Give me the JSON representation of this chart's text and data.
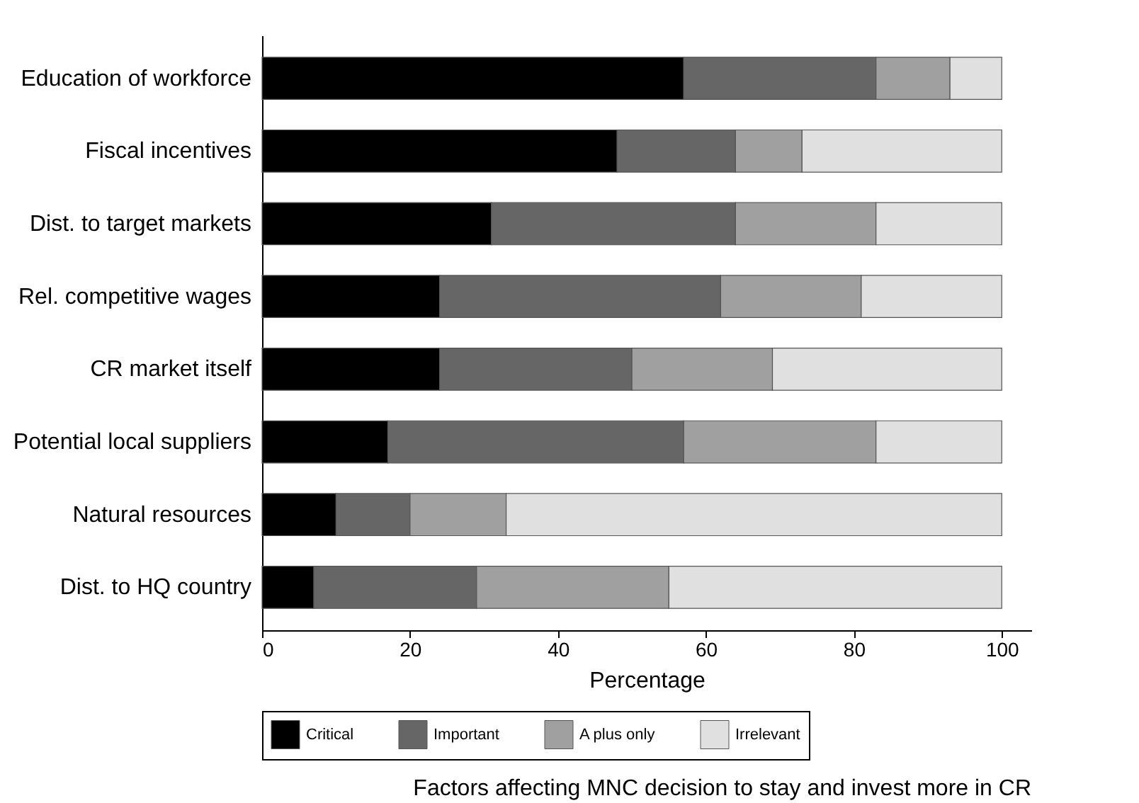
{
  "chart_data": {
    "type": "bar",
    "orientation": "horizontal",
    "stacked": true,
    "title": "Factors affecting MNC decision to stay and invest more in CR",
    "xlabel": "Percentage",
    "categories": [
      "Education of workforce",
      "Fiscal incentives",
      "Dist. to target markets",
      "Rel. competitive wages",
      "CR market itself",
      "Potential local suppliers",
      "Natural resources",
      "Dist. to HQ country"
    ],
    "series": [
      {
        "name": "Critical",
        "color": "#000000",
        "values": [
          57,
          48,
          31,
          24,
          24,
          17,
          10,
          7
        ]
      },
      {
        "name": "Important",
        "color": "#666666",
        "values": [
          26,
          16,
          33,
          38,
          26,
          40,
          10,
          22
        ]
      },
      {
        "name": "A plus only",
        "color": "#a0a0a0",
        "values": [
          10,
          9,
          19,
          19,
          19,
          26,
          13,
          26
        ]
      },
      {
        "name": "Irrelevant",
        "color": "#e0e0e0",
        "values": [
          7,
          27,
          17,
          19,
          31,
          17,
          67,
          45
        ]
      }
    ],
    "xlim": [
      0,
      104
    ],
    "xticks": [
      0,
      20,
      40,
      60,
      80,
      100
    ],
    "grid": false,
    "legend": "bottom"
  }
}
